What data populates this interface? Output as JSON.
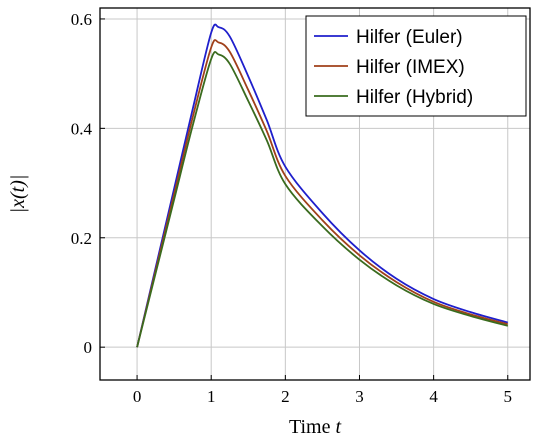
{
  "chart_data": {
    "type": "line",
    "title": "",
    "xlabel_prefix": "Time ",
    "xlabel_var": "t",
    "ylabel": "|x(t)|",
    "xlim": [
      -0.5,
      5.3
    ],
    "ylim": [
      -0.06,
      0.62
    ],
    "xticks": [
      0,
      1,
      2,
      3,
      4,
      5
    ],
    "xtick_labels": [
      "0",
      "1",
      "2",
      "3",
      "4",
      "5"
    ],
    "yticks": [
      0,
      0.2,
      0.4,
      0.6
    ],
    "ytick_labels": [
      "0",
      "0.2",
      "0.4",
      "0.6"
    ],
    "grid": true,
    "legend_position": "top-right",
    "x": [
      0,
      0.25,
      0.5,
      0.75,
      1.0,
      1.1,
      1.25,
      1.5,
      1.75,
      2.0,
      2.5,
      3.0,
      3.5,
      4.0,
      4.5,
      5.0
    ],
    "series": [
      {
        "name": "Hilfer (Euler)",
        "color": "#1f1fcc",
        "values": [
          0,
          0.145,
          0.29,
          0.435,
          0.575,
          0.585,
          0.568,
          0.495,
          0.415,
          0.33,
          0.245,
          0.177,
          0.125,
          0.088,
          0.064,
          0.045
        ]
      },
      {
        "name": "Hilfer (IMEX)",
        "color": "#a0401a",
        "values": [
          0,
          0.14,
          0.28,
          0.42,
          0.548,
          0.557,
          0.54,
          0.47,
          0.395,
          0.313,
          0.232,
          0.168,
          0.119,
          0.083,
          0.06,
          0.042
        ]
      },
      {
        "name": "Hilfer (Hybrid)",
        "color": "#3a6b1e",
        "values": [
          0,
          0.135,
          0.27,
          0.405,
          0.527,
          0.535,
          0.518,
          0.45,
          0.378,
          0.298,
          0.221,
          0.16,
          0.113,
          0.079,
          0.057,
          0.039
        ]
      }
    ]
  }
}
